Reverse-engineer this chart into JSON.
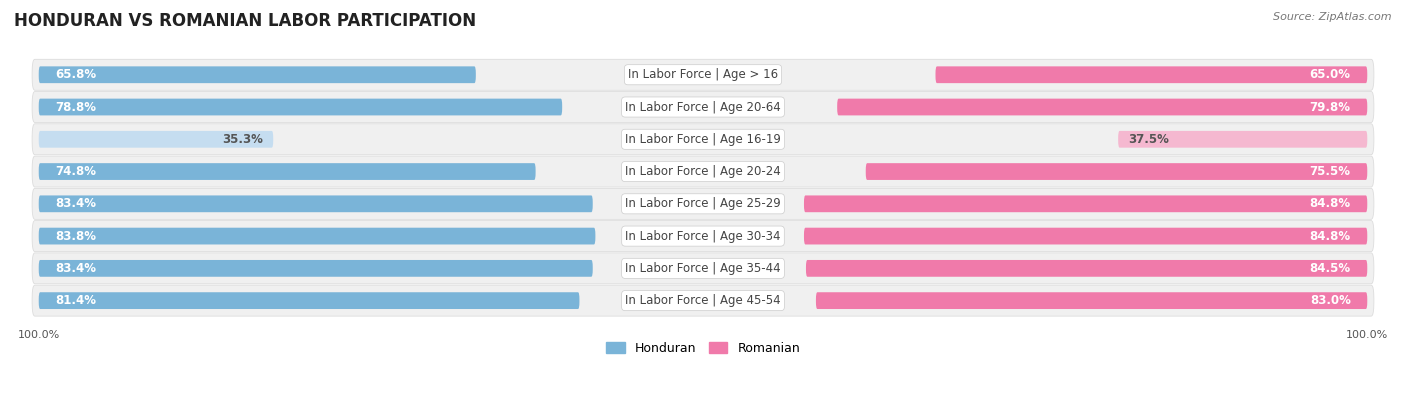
{
  "title": "HONDURAN VS ROMANIAN LABOR PARTICIPATION",
  "source": "Source: ZipAtlas.com",
  "categories": [
    "In Labor Force | Age > 16",
    "In Labor Force | Age 20-64",
    "In Labor Force | Age 16-19",
    "In Labor Force | Age 20-24",
    "In Labor Force | Age 25-29",
    "In Labor Force | Age 30-34",
    "In Labor Force | Age 35-44",
    "In Labor Force | Age 45-54"
  ],
  "honduran": [
    65.8,
    78.8,
    35.3,
    74.8,
    83.4,
    83.8,
    83.4,
    81.4
  ],
  "romanian": [
    65.0,
    79.8,
    37.5,
    75.5,
    84.8,
    84.8,
    84.5,
    83.0
  ],
  "honduran_color": "#7ab4d8",
  "honduran_color_light": "#c5ddf0",
  "romanian_color": "#f07aaa",
  "romanian_color_light": "#f5b8d0",
  "row_bg_color": "#f0f0f0",
  "row_border_color": "#d8d8d8",
  "text_color_dark": "#555555",
  "text_color_white": "#ffffff",
  "max_value": 100.0,
  "bar_height": 0.52,
  "title_fontsize": 12,
  "label_fontsize": 8.5,
  "value_fontsize": 8.5,
  "legend_fontsize": 9,
  "source_fontsize": 8
}
